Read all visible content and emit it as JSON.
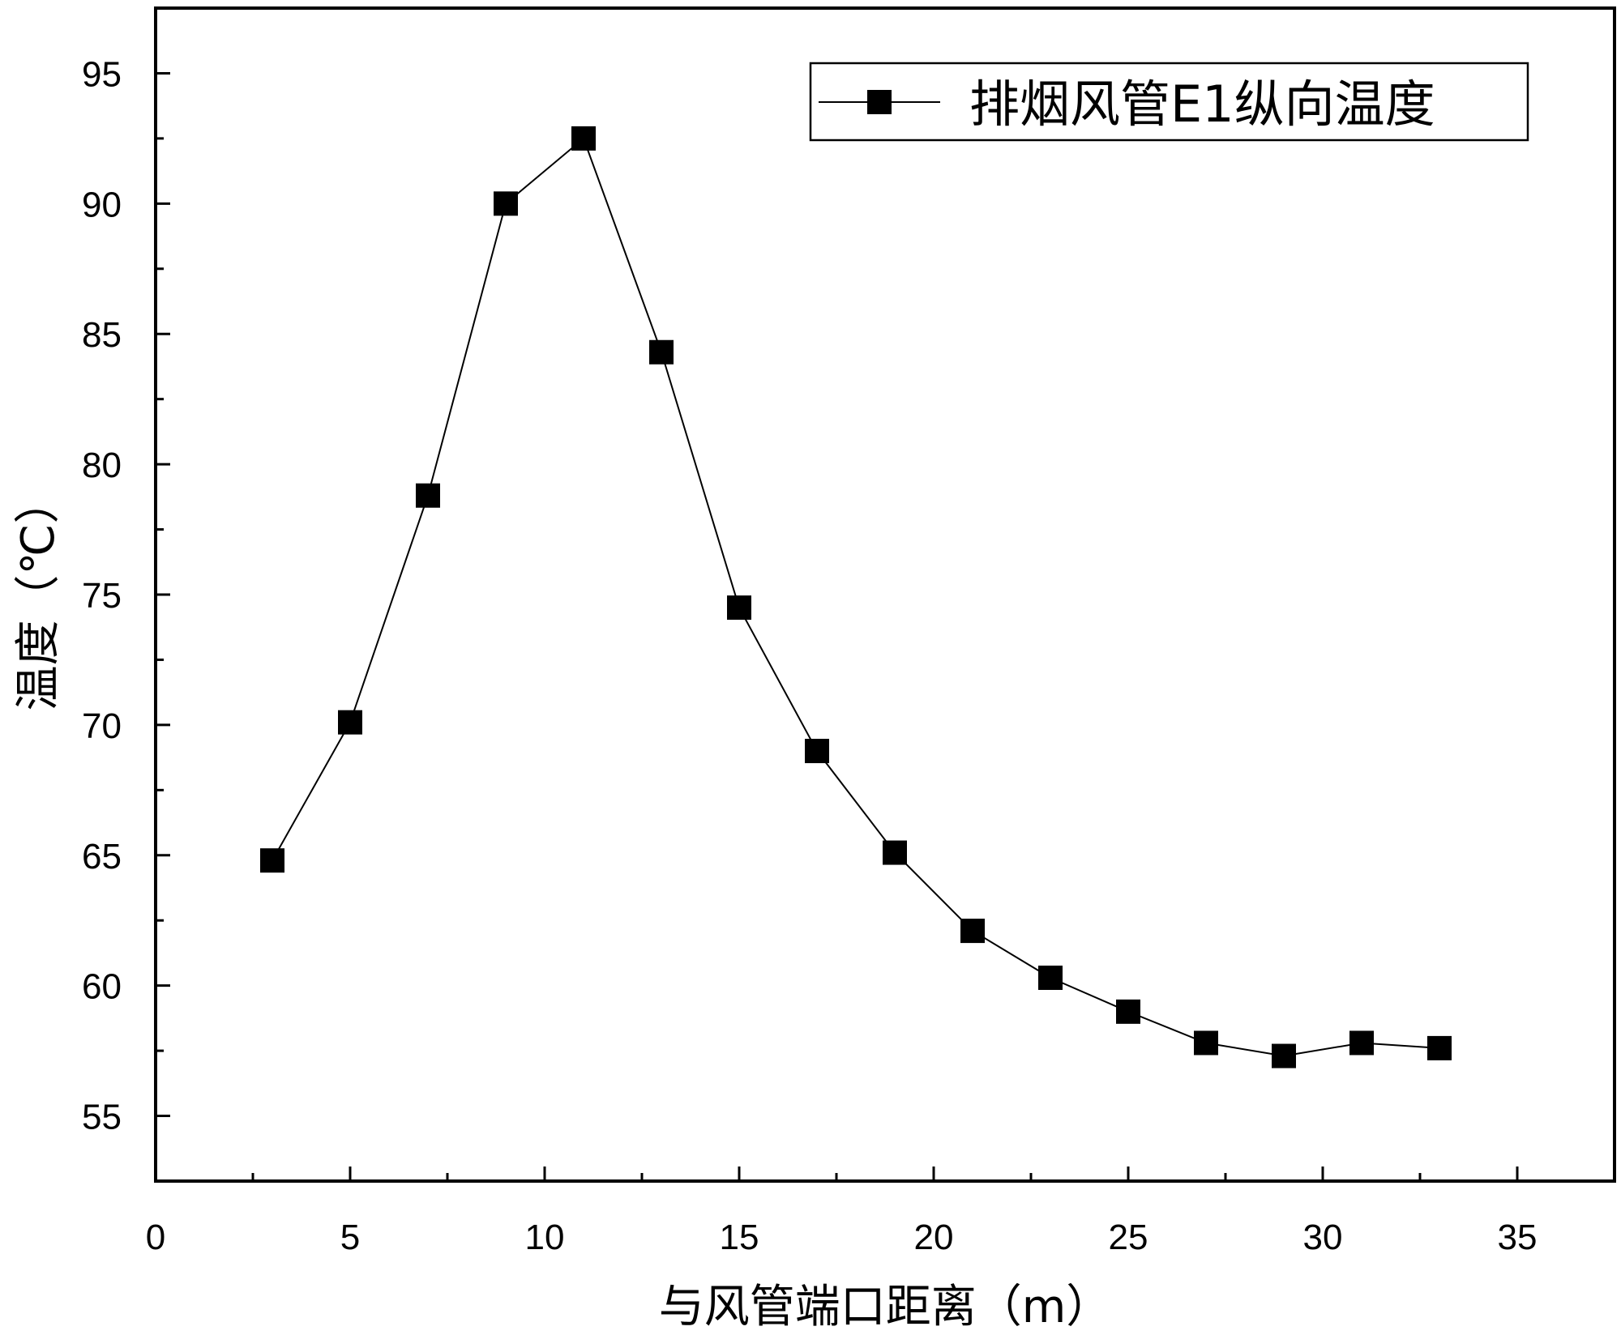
{
  "chart_data": {
    "type": "line",
    "title": "",
    "xlabel": "与风管端口距离（m）",
    "ylabel": "温度（℃）",
    "xlim": [
      0,
      37.5
    ],
    "ylim": [
      52.5,
      97.5
    ],
    "xticks": [
      0,
      5,
      10,
      15,
      20,
      25,
      30,
      35
    ],
    "yticks": [
      55,
      60,
      65,
      70,
      75,
      80,
      85,
      90,
      95
    ],
    "grid": false,
    "legend_position": "top-right",
    "colors": {
      "line": "#000000",
      "marker": "#000000"
    },
    "series": [
      {
        "name": "排烟风管E1纵向温度",
        "marker": "square",
        "x": [
          3,
          5,
          7,
          9,
          11,
          13,
          15,
          17,
          19,
          21,
          23,
          25,
          27,
          29,
          31,
          33
        ],
        "y": [
          64.8,
          70.1,
          78.8,
          90.0,
          92.5,
          84.3,
          74.5,
          69.0,
          65.1,
          62.1,
          60.3,
          59.0,
          57.8,
          57.3,
          57.8,
          57.6
        ]
      }
    ]
  }
}
